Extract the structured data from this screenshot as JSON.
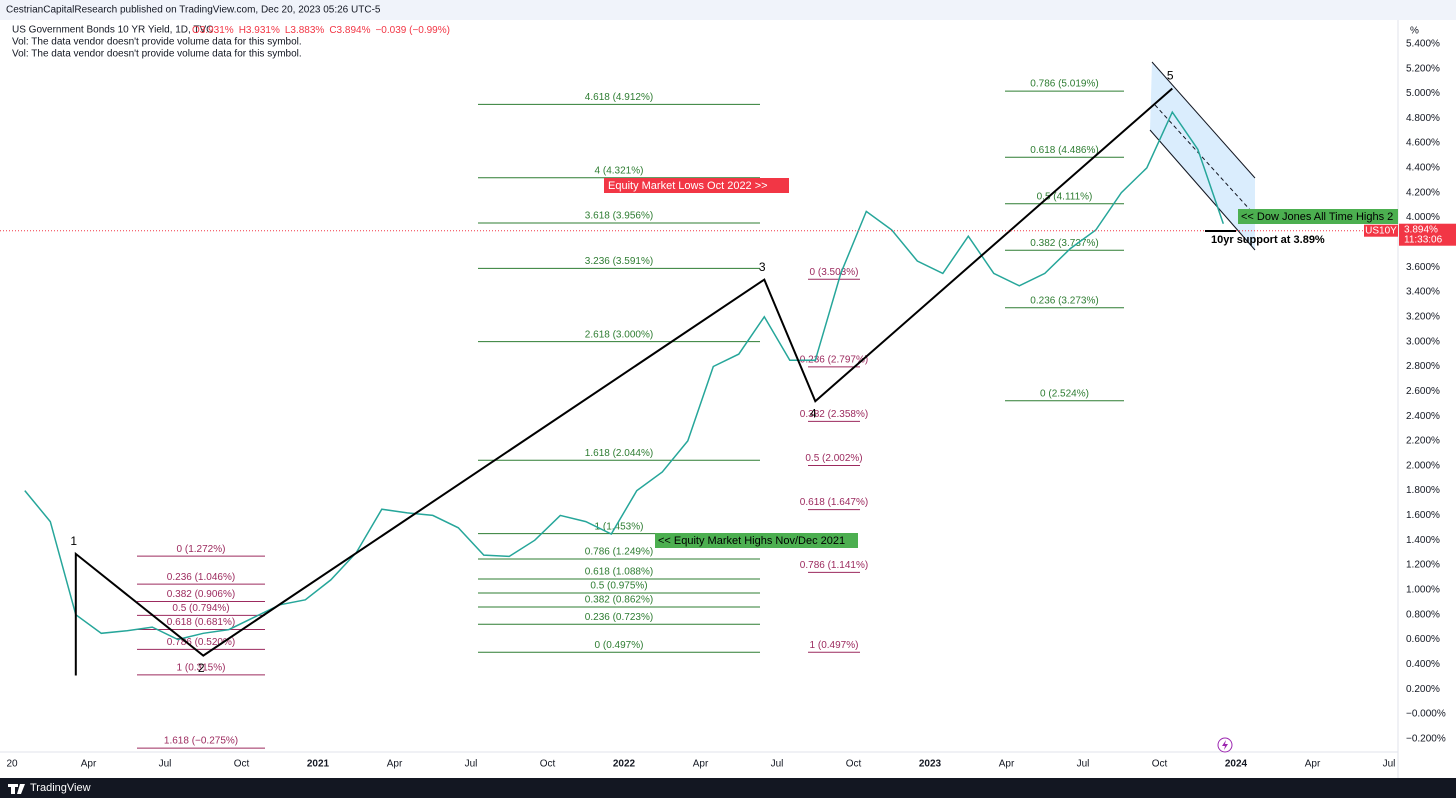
{
  "header": {
    "publisher": "CestrianCapitalResearch published on TradingView.com, Dec 20, 2023 05:26 UTC-5",
    "symbol": "US Government Bonds 10 YR Yield, 1D, TVC",
    "ohlc": [
      "O3.931%",
      "H3.931%",
      "L3.883%",
      "C3.894%",
      "−0.039 (−0.99%)"
    ],
    "vol_notes": [
      "Vol: The data vendor doesn't provide volume data for this symbol.",
      "Vol: The data vendor doesn't provide volume data for this symbol."
    ]
  },
  "footer": {
    "brand": "TradingView"
  },
  "chart_data": {
    "type": "line",
    "y_unit": "%",
    "x": [
      "2020-01",
      "2020-02",
      "2020-03",
      "2020-04",
      "2020-05",
      "2020-06",
      "2020-07",
      "2020-08",
      "2020-09",
      "2020-10",
      "2020-11",
      "2020-12",
      "2021-01",
      "2021-02",
      "2021-03",
      "2021-04",
      "2021-05",
      "2021-06",
      "2021-07",
      "2021-08",
      "2021-09",
      "2021-10",
      "2021-11",
      "2021-12",
      "2022-01",
      "2022-02",
      "2022-03",
      "2022-04",
      "2022-05",
      "2022-06",
      "2022-07",
      "2022-08",
      "2022-09",
      "2022-10",
      "2022-11",
      "2022-12",
      "2023-01",
      "2023-02",
      "2023-03",
      "2023-04",
      "2023-05",
      "2023-06",
      "2023-07",
      "2023-08",
      "2023-09",
      "2023-10",
      "2023-11",
      "2023-12"
    ],
    "series": [
      {
        "name": "US10Y",
        "color": "#26a69a",
        "values": [
          1.8,
          1.55,
          0.8,
          0.65,
          0.67,
          0.7,
          0.6,
          0.65,
          0.68,
          0.78,
          0.88,
          0.92,
          1.08,
          1.3,
          1.65,
          1.62,
          1.6,
          1.5,
          1.28,
          1.27,
          1.4,
          1.6,
          1.55,
          1.45,
          1.8,
          1.95,
          2.2,
          2.8,
          2.9,
          3.2,
          2.85,
          2.85,
          3.55,
          4.05,
          3.9,
          3.65,
          3.55,
          3.85,
          3.55,
          3.45,
          3.55,
          3.75,
          3.9,
          4.2,
          4.4,
          4.85,
          4.55,
          3.95
        ]
      }
    ],
    "last_value": 3.894,
    "last_label": "3.894%",
    "countdown": "11:33:06",
    "xlim": [
      "2020-01",
      "2024-07"
    ],
    "xticks": [
      {
        "value": "2020-01",
        "label": "20"
      },
      {
        "value": "2020-04",
        "label": "Apr"
      },
      {
        "value": "2020-07",
        "label": "Jul"
      },
      {
        "value": "2020-10",
        "label": "Oct"
      },
      {
        "value": "2021-01",
        "label": "2021"
      },
      {
        "value": "2021-04",
        "label": "Apr"
      },
      {
        "value": "2021-07",
        "label": "Jul"
      },
      {
        "value": "2021-10",
        "label": "Oct"
      },
      {
        "value": "2022-01",
        "label": "2022"
      },
      {
        "value": "2022-04",
        "label": "Apr"
      },
      {
        "value": "2022-07",
        "label": "Jul"
      },
      {
        "value": "2022-10",
        "label": "Oct"
      },
      {
        "value": "2023-01",
        "label": "2023"
      },
      {
        "value": "2023-04",
        "label": "Apr"
      },
      {
        "value": "2023-07",
        "label": "Jul"
      },
      {
        "value": "2023-10",
        "label": "Oct"
      },
      {
        "value": "2024-01",
        "label": "2024"
      },
      {
        "value": "2024-04",
        "label": "Apr"
      },
      {
        "value": "2024-07",
        "label": "Jul"
      }
    ],
    "ylim": [
      -0.3,
      5.5
    ],
    "yticks": [
      {
        "value": 5.4,
        "label": "5.400%"
      },
      {
        "value": 5.2,
        "label": "5.200%"
      },
      {
        "value": 5.0,
        "label": "5.000%"
      },
      {
        "value": 4.8,
        "label": "4.800%"
      },
      {
        "value": 4.6,
        "label": "4.600%"
      },
      {
        "value": 4.4,
        "label": "4.400%"
      },
      {
        "value": 4.2,
        "label": "4.200%"
      },
      {
        "value": 4.0,
        "label": "4.000%"
      },
      {
        "value": 3.8,
        "label": "3.800%"
      },
      {
        "value": 3.6,
        "label": "3.600%"
      },
      {
        "value": 3.4,
        "label": "3.400%"
      },
      {
        "value": 3.2,
        "label": "3.200%"
      },
      {
        "value": 3.0,
        "label": "3.000%"
      },
      {
        "value": 2.8,
        "label": "2.800%"
      },
      {
        "value": 2.6,
        "label": "2.600%"
      },
      {
        "value": 2.4,
        "label": "2.400%"
      },
      {
        "value": 2.2,
        "label": "2.200%"
      },
      {
        "value": 2.0,
        "label": "2.000%"
      },
      {
        "value": 1.8,
        "label": "1.800%"
      },
      {
        "value": 1.6,
        "label": "1.600%"
      },
      {
        "value": 1.4,
        "label": "1.400%"
      },
      {
        "value": 1.2,
        "label": "1.200%"
      },
      {
        "value": 1.0,
        "label": "1.000%"
      },
      {
        "value": 0.8,
        "label": "0.800%"
      },
      {
        "value": 0.6,
        "label": "0.600%"
      },
      {
        "value": 0.4,
        "label": "0.400%"
      },
      {
        "value": 0.2,
        "label": "0.200%"
      },
      {
        "value": 0,
        "label": "−0.000%"
      },
      {
        "value": -0.2,
        "label": "−0.200%"
      }
    ],
    "grid": false,
    "fib_groups": [
      {
        "color": "#2e7d32",
        "levels": [
          {
            "label": "4.618 (4.912%)",
            "value": 4.912
          },
          {
            "label": "4 (4.321%)",
            "value": 4.321
          },
          {
            "label": "3.618 (3.956%)",
            "value": 3.956
          },
          {
            "label": "3.236 (3.591%)",
            "value": 3.591
          },
          {
            "label": "2.618 (3.000%)",
            "value": 3.0
          },
          {
            "label": "1.618 (2.044%)",
            "value": 2.044
          },
          {
            "label": "1 (1.453%)",
            "value": 1.453
          },
          {
            "label": "0.786 (1.249%)",
            "value": 1.249
          },
          {
            "label": "0.618 (1.088%)",
            "value": 1.088
          },
          {
            "label": "0.5 (0.975%)",
            "value": 0.975
          },
          {
            "label": "0.382 (0.862%)",
            "value": 0.862
          },
          {
            "label": "0.236 (0.723%)",
            "value": 0.723
          },
          {
            "label": "0 (0.497%)",
            "value": 0.497
          }
        ]
      },
      {
        "color": "#9c2a5e",
        "levels": [
          {
            "label": "0 (1.272%)",
            "value": 1.272
          },
          {
            "label": "0.236 (1.046%)",
            "value": 1.046
          },
          {
            "label": "0.382 (0.906%)",
            "value": 0.906
          },
          {
            "label": "0.5 (0.794%)",
            "value": 0.794
          },
          {
            "label": "0.618 (0.681%)",
            "value": 0.681
          },
          {
            "label": "0.786 (0.520%)",
            "value": 0.52
          },
          {
            "label": "1 (0.315%)",
            "value": 0.315
          },
          {
            "label": "1.618 (−0.275%)",
            "value": -0.275
          }
        ]
      },
      {
        "color": "#9c2a5e",
        "levels": [
          {
            "label": "0 (3.503%)",
            "value": 3.503
          },
          {
            "label": "0.236 (2.797%)",
            "value": 2.797
          },
          {
            "label": "0.382 (2.358%)",
            "value": 2.358
          },
          {
            "label": "0.5 (2.002%)",
            "value": 2.002
          },
          {
            "label": "0.618 (1.647%)",
            "value": 1.647
          },
          {
            "label": "0.786 (1.141%)",
            "value": 1.141
          },
          {
            "label": "1 (0.497%)",
            "value": 0.497
          }
        ]
      },
      {
        "color": "#2e7d32",
        "levels": [
          {
            "label": "0.786 (5.019%)",
            "value": 5.019
          },
          {
            "label": "0.618 (4.486%)",
            "value": 4.486
          },
          {
            "label": "0.5 (4.111%)",
            "value": 4.111
          },
          {
            "label": "0.382 (3.737%)",
            "value": 3.737
          },
          {
            "label": "0.236 (3.273%)",
            "value": 3.273
          },
          {
            "label": "0 (2.524%)",
            "value": 2.524
          }
        ]
      }
    ],
    "wave": {
      "color": "#000000",
      "points": [
        {
          "x": "2020-03",
          "y": 0.31
        },
        {
          "x": "2020-03",
          "y": 1.29,
          "label": "1"
        },
        {
          "x": "2020-08",
          "y": 0.47,
          "label": "2"
        },
        {
          "x": "2022-06",
          "y": 3.5,
          "label": "3"
        },
        {
          "x": "2022-08",
          "y": 2.52,
          "label": "4"
        },
        {
          "x": "2023-10",
          "y": 5.04,
          "label": "5"
        }
      ]
    },
    "annotations": {
      "equity_lows": "Equity Market Lows Oct 2022 >>",
      "equity_highs": "<< Equity Market Highs Nov/Dec 2021",
      "dow_highs": "<< Dow Jones All Time Highs 2",
      "support": "10yr support at 3.89%"
    }
  }
}
